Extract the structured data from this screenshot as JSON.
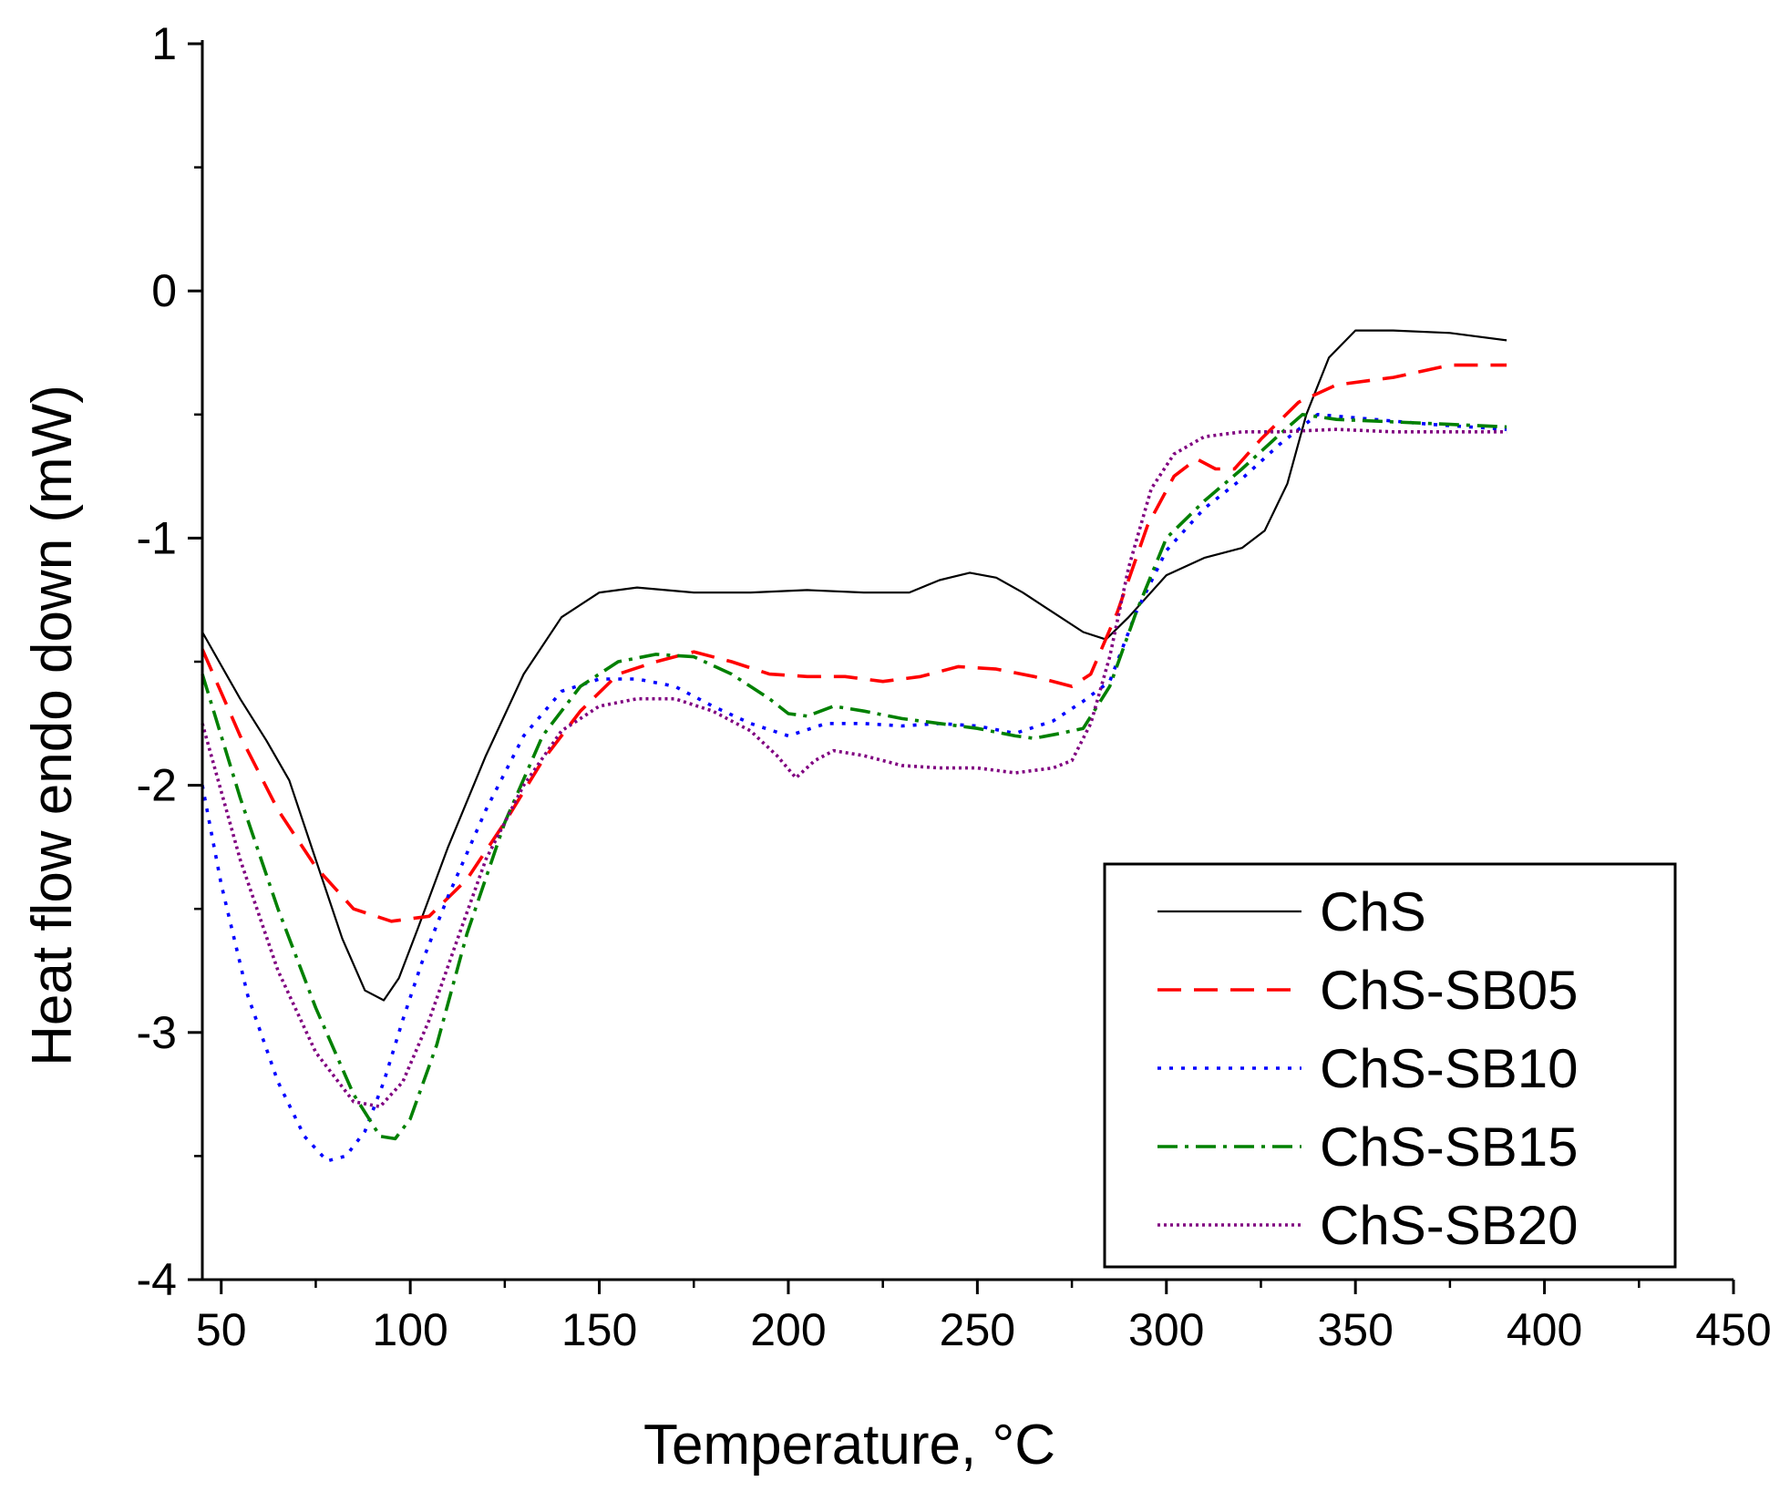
{
  "chart_data": {
    "type": "line",
    "title": "",
    "xlabel": "Temperature, °C",
    "ylabel": "Heat flow endo down (mW)",
    "xlim": [
      45,
      450
    ],
    "ylim": [
      -4,
      1
    ],
    "xticks": [
      50,
      100,
      150,
      200,
      250,
      300,
      350,
      400,
      450
    ],
    "xtick_labels": [
      "50",
      "100",
      "150",
      "200",
      "250",
      "300",
      "350",
      "400",
      "450"
    ],
    "yticks": [
      -4,
      -3,
      -2,
      -1,
      0,
      1
    ],
    "ytick_labels": [
      "-4",
      "-3",
      "-2",
      "-1",
      "0",
      "1"
    ],
    "grid": false,
    "legend_position": "bottom-right",
    "series": [
      {
        "name": "ChS",
        "color": "#000000",
        "style": "solid",
        "x": [
          45,
          55,
          62,
          68,
          75,
          82,
          88,
          93,
          97,
          102,
          110,
          120,
          130,
          140,
          150,
          160,
          175,
          190,
          205,
          220,
          232,
          240,
          248,
          255,
          262,
          270,
          278,
          284,
          290,
          300,
          310,
          320,
          326,
          332,
          337,
          343,
          350,
          360,
          375,
          390
        ],
        "y": [
          -1.38,
          -1.65,
          -1.82,
          -1.98,
          -2.3,
          -2.62,
          -2.83,
          -2.87,
          -2.78,
          -2.58,
          -2.25,
          -1.88,
          -1.55,
          -1.32,
          -1.22,
          -1.2,
          -1.22,
          -1.22,
          -1.21,
          -1.22,
          -1.22,
          -1.17,
          -1.14,
          -1.16,
          -1.22,
          -1.3,
          -1.38,
          -1.41,
          -1.32,
          -1.15,
          -1.08,
          -1.04,
          -0.97,
          -0.78,
          -0.5,
          -0.27,
          -0.16,
          -0.16,
          -0.17,
          -0.2
        ]
      },
      {
        "name": "ChS-SB05",
        "color": "#ff0000",
        "style": "dashed",
        "x": [
          45,
          55,
          65,
          75,
          85,
          95,
          105,
          115,
          125,
          135,
          145,
          155,
          165,
          175,
          185,
          195,
          205,
          215,
          225,
          235,
          245,
          255,
          265,
          275,
          280,
          287,
          295,
          302,
          308,
          313,
          318,
          325,
          335,
          345,
          360,
          375,
          390
        ],
        "y": [
          -1.45,
          -1.8,
          -2.1,
          -2.33,
          -2.5,
          -2.55,
          -2.53,
          -2.38,
          -2.15,
          -1.9,
          -1.7,
          -1.55,
          -1.5,
          -1.46,
          -1.5,
          -1.55,
          -1.56,
          -1.56,
          -1.58,
          -1.56,
          -1.52,
          -1.53,
          -1.56,
          -1.6,
          -1.55,
          -1.3,
          -0.95,
          -0.75,
          -0.68,
          -0.72,
          -0.72,
          -0.6,
          -0.45,
          -0.38,
          -0.35,
          -0.3,
          -0.3
        ]
      },
      {
        "name": "ChS-SB10",
        "color": "#0000ff",
        "style": "dotted",
        "x": [
          45,
          50,
          57,
          65,
          72,
          78,
          83,
          88,
          93,
          98,
          103,
          110,
          120,
          130,
          140,
          150,
          160,
          170,
          180,
          190,
          200,
          210,
          220,
          230,
          240,
          250,
          260,
          270,
          278,
          285,
          292,
          300,
          310,
          320,
          330,
          340,
          355,
          370,
          390
        ],
        "y": [
          -2.0,
          -2.4,
          -2.85,
          -3.2,
          -3.42,
          -3.52,
          -3.5,
          -3.4,
          -3.2,
          -2.95,
          -2.72,
          -2.45,
          -2.1,
          -1.8,
          -1.62,
          -1.57,
          -1.57,
          -1.6,
          -1.68,
          -1.75,
          -1.8,
          -1.75,
          -1.75,
          -1.76,
          -1.75,
          -1.76,
          -1.79,
          -1.74,
          -1.66,
          -1.58,
          -1.3,
          -1.05,
          -0.88,
          -0.76,
          -0.62,
          -0.5,
          -0.52,
          -0.54,
          -0.56
        ]
      },
      {
        "name": "ChS-SB15",
        "color": "#008000",
        "style": "dashdot",
        "x": [
          45,
          55,
          65,
          75,
          85,
          92,
          96,
          100,
          107,
          115,
          125,
          135,
          145,
          155,
          165,
          175,
          185,
          195,
          200,
          205,
          212,
          220,
          230,
          240,
          250,
          260,
          265,
          272,
          278,
          285,
          292,
          300,
          310,
          320,
          330,
          336,
          345,
          360,
          375,
          390
        ],
        "y": [
          -1.55,
          -2.05,
          -2.5,
          -2.9,
          -3.25,
          -3.42,
          -3.43,
          -3.35,
          -3.05,
          -2.6,
          -2.15,
          -1.8,
          -1.6,
          -1.5,
          -1.47,
          -1.48,
          -1.55,
          -1.65,
          -1.71,
          -1.72,
          -1.68,
          -1.7,
          -1.73,
          -1.75,
          -1.77,
          -1.8,
          -1.81,
          -1.79,
          -1.77,
          -1.6,
          -1.3,
          -1.0,
          -0.85,
          -0.72,
          -0.58,
          -0.5,
          -0.52,
          -0.53,
          -0.54,
          -0.55
        ]
      },
      {
        "name": "ChS-SB20",
        "color": "#800080",
        "style": "fine-dotted",
        "x": [
          45,
          55,
          65,
          75,
          85,
          92,
          98,
          105,
          113,
          120,
          130,
          140,
          150,
          160,
          170,
          180,
          190,
          197,
          202,
          207,
          212,
          220,
          230,
          240,
          250,
          260,
          270,
          275,
          280,
          285,
          290,
          296,
          302,
          310,
          320,
          330,
          345,
          360,
          375,
          390
        ],
        "y": [
          -1.75,
          -2.3,
          -2.75,
          -3.08,
          -3.28,
          -3.3,
          -3.2,
          -2.95,
          -2.6,
          -2.3,
          -2.0,
          -1.78,
          -1.68,
          -1.65,
          -1.65,
          -1.7,
          -1.78,
          -1.88,
          -1.97,
          -1.9,
          -1.86,
          -1.88,
          -1.92,
          -1.93,
          -1.93,
          -1.95,
          -1.93,
          -1.9,
          -1.75,
          -1.48,
          -1.12,
          -0.8,
          -0.66,
          -0.59,
          -0.57,
          -0.57,
          -0.56,
          -0.57,
          -0.57,
          -0.57
        ]
      }
    ]
  }
}
